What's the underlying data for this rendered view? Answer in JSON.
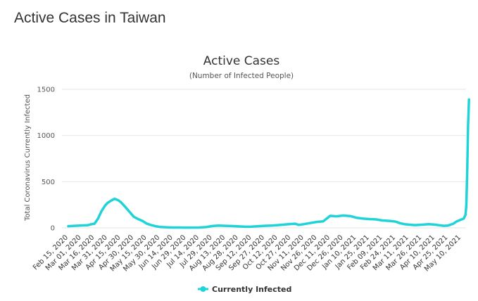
{
  "page": {
    "heading": "Active Cases in Taiwan"
  },
  "chart_data": {
    "type": "line",
    "title": "Active Cases",
    "subtitle": "(Number of Infected People)",
    "ylabel": "Total Coronavirus Currently Infected",
    "xlabel": "",
    "ylim": [
      0,
      1500
    ],
    "yticks": [
      0,
      500,
      1000,
      1500
    ],
    "grid": true,
    "legend_position": "bottom-center",
    "x_tick_labels": [
      "Feb 15, 2020",
      "Mar 01, 2020",
      "Mar 16, 2020",
      "Mar 31, 2020",
      "Apr 15, 2020",
      "Apr 30, 2020",
      "May 15, 2020",
      "May 30, 2020",
      "Jun 14, 2020",
      "Jun 29, 2020",
      "Jul 14, 2020",
      "Jul 29, 2020",
      "Aug 13, 2020",
      "Aug 28, 2020",
      "Sep 12, 2020",
      "Sep 27, 2020",
      "Oct 12, 2020",
      "Oct 27, 2020",
      "Nov 11, 2020",
      "Nov 26, 2020",
      "Dec 11, 2020",
      "Dec 26, 2020",
      "Jan 10, 2021",
      "Jan 25, 2021",
      "Feb 09, 2021",
      "Feb 24, 2021",
      "Mar 11, 2021",
      "Mar 26, 2021",
      "Apr 10, 2021",
      "Apr 25, 2021",
      "May 10, 2021"
    ],
    "series": [
      {
        "name": "Currently Infected",
        "color": "#1fd3d8",
        "points": [
          [
            "2020-02-15",
            18
          ],
          [
            "2020-02-22",
            22
          ],
          [
            "2020-03-01",
            26
          ],
          [
            "2020-03-08",
            28
          ],
          [
            "2020-03-13",
            40
          ],
          [
            "2020-03-16",
            45
          ],
          [
            "2020-03-20",
            100
          ],
          [
            "2020-03-24",
            180
          ],
          [
            "2020-03-28",
            240
          ],
          [
            "2020-03-31",
            270
          ],
          [
            "2020-04-04",
            295
          ],
          [
            "2020-04-08",
            315
          ],
          [
            "2020-04-12",
            300
          ],
          [
            "2020-04-15",
            280
          ],
          [
            "2020-04-20",
            230
          ],
          [
            "2020-04-25",
            175
          ],
          [
            "2020-04-30",
            120
          ],
          [
            "2020-05-05",
            95
          ],
          [
            "2020-05-10",
            75
          ],
          [
            "2020-05-15",
            45
          ],
          [
            "2020-05-20",
            30
          ],
          [
            "2020-05-25",
            18
          ],
          [
            "2020-05-30",
            10
          ],
          [
            "2020-06-07",
            6
          ],
          [
            "2020-06-14",
            4
          ],
          [
            "2020-06-29",
            3
          ],
          [
            "2020-07-14",
            4
          ],
          [
            "2020-07-22",
            8
          ],
          [
            "2020-07-29",
            20
          ],
          [
            "2020-08-05",
            24
          ],
          [
            "2020-08-13",
            22
          ],
          [
            "2020-08-20",
            20
          ],
          [
            "2020-08-28",
            16
          ],
          [
            "2020-09-05",
            12
          ],
          [
            "2020-09-12",
            14
          ],
          [
            "2020-09-20",
            18
          ],
          [
            "2020-09-27",
            22
          ],
          [
            "2020-10-05",
            25
          ],
          [
            "2020-10-12",
            30
          ],
          [
            "2020-10-20",
            36
          ],
          [
            "2020-10-27",
            42
          ],
          [
            "2020-11-01",
            45
          ],
          [
            "2020-11-05",
            32
          ],
          [
            "2020-11-11",
            40
          ],
          [
            "2020-11-18",
            52
          ],
          [
            "2020-11-26",
            65
          ],
          [
            "2020-12-03",
            70
          ],
          [
            "2020-12-07",
            100
          ],
          [
            "2020-12-11",
            130
          ],
          [
            "2020-12-18",
            125
          ],
          [
            "2020-12-26",
            133
          ],
          [
            "2021-01-03",
            128
          ],
          [
            "2021-01-10",
            110
          ],
          [
            "2021-01-18",
            100
          ],
          [
            "2021-01-25",
            95
          ],
          [
            "2021-02-01",
            92
          ],
          [
            "2021-02-09",
            80
          ],
          [
            "2021-02-17",
            75
          ],
          [
            "2021-02-24",
            68
          ],
          [
            "2021-03-01",
            50
          ],
          [
            "2021-03-06",
            40
          ],
          [
            "2021-03-11",
            35
          ],
          [
            "2021-03-18",
            30
          ],
          [
            "2021-03-26",
            34
          ],
          [
            "2021-04-03",
            40
          ],
          [
            "2021-04-10",
            35
          ],
          [
            "2021-04-15",
            28
          ],
          [
            "2021-04-20",
            22
          ],
          [
            "2021-04-25",
            25
          ],
          [
            "2021-05-01",
            45
          ],
          [
            "2021-05-05",
            70
          ],
          [
            "2021-05-10",
            90
          ],
          [
            "2021-05-13",
            100
          ],
          [
            "2021-05-15",
            140
          ],
          [
            "2021-05-16",
            240
          ],
          [
            "2021-05-17",
            620
          ],
          [
            "2021-05-18",
            1100
          ],
          [
            "2021-05-19",
            1390
          ]
        ]
      }
    ]
  }
}
